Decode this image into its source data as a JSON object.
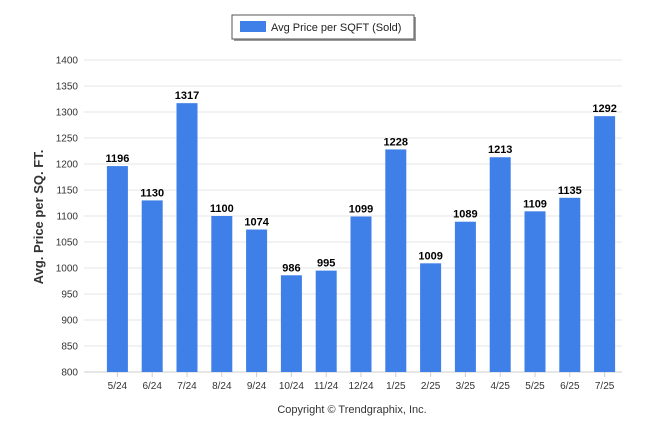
{
  "chart_data": {
    "type": "bar",
    "title": "",
    "xlabel": "",
    "ylabel": "Avg. Price per SQ. FT.",
    "categories": [
      "5/24",
      "6/24",
      "7/24",
      "8/24",
      "9/24",
      "10/24",
      "11/24",
      "12/24",
      "1/25",
      "2/25",
      "3/25",
      "4/25",
      "5/25",
      "6/25",
      "7/25"
    ],
    "series": [
      {
        "name": "Avg Price per SQFT (Sold)",
        "values": [
          1196,
          1130,
          1317,
          1100,
          1074,
          986,
          995,
          1099,
          1228,
          1009,
          1089,
          1213,
          1109,
          1135,
          1292
        ],
        "color": "#3f7fe8"
      }
    ],
    "ylim": [
      800,
      1400
    ],
    "yticks": [
      800,
      850,
      900,
      950,
      1000,
      1050,
      1100,
      1150,
      1200,
      1250,
      1300,
      1350,
      1400
    ],
    "grid": true,
    "legend_position": "top-center",
    "data_labels": true,
    "footer": "Copyright © Trendgraphix, Inc."
  }
}
